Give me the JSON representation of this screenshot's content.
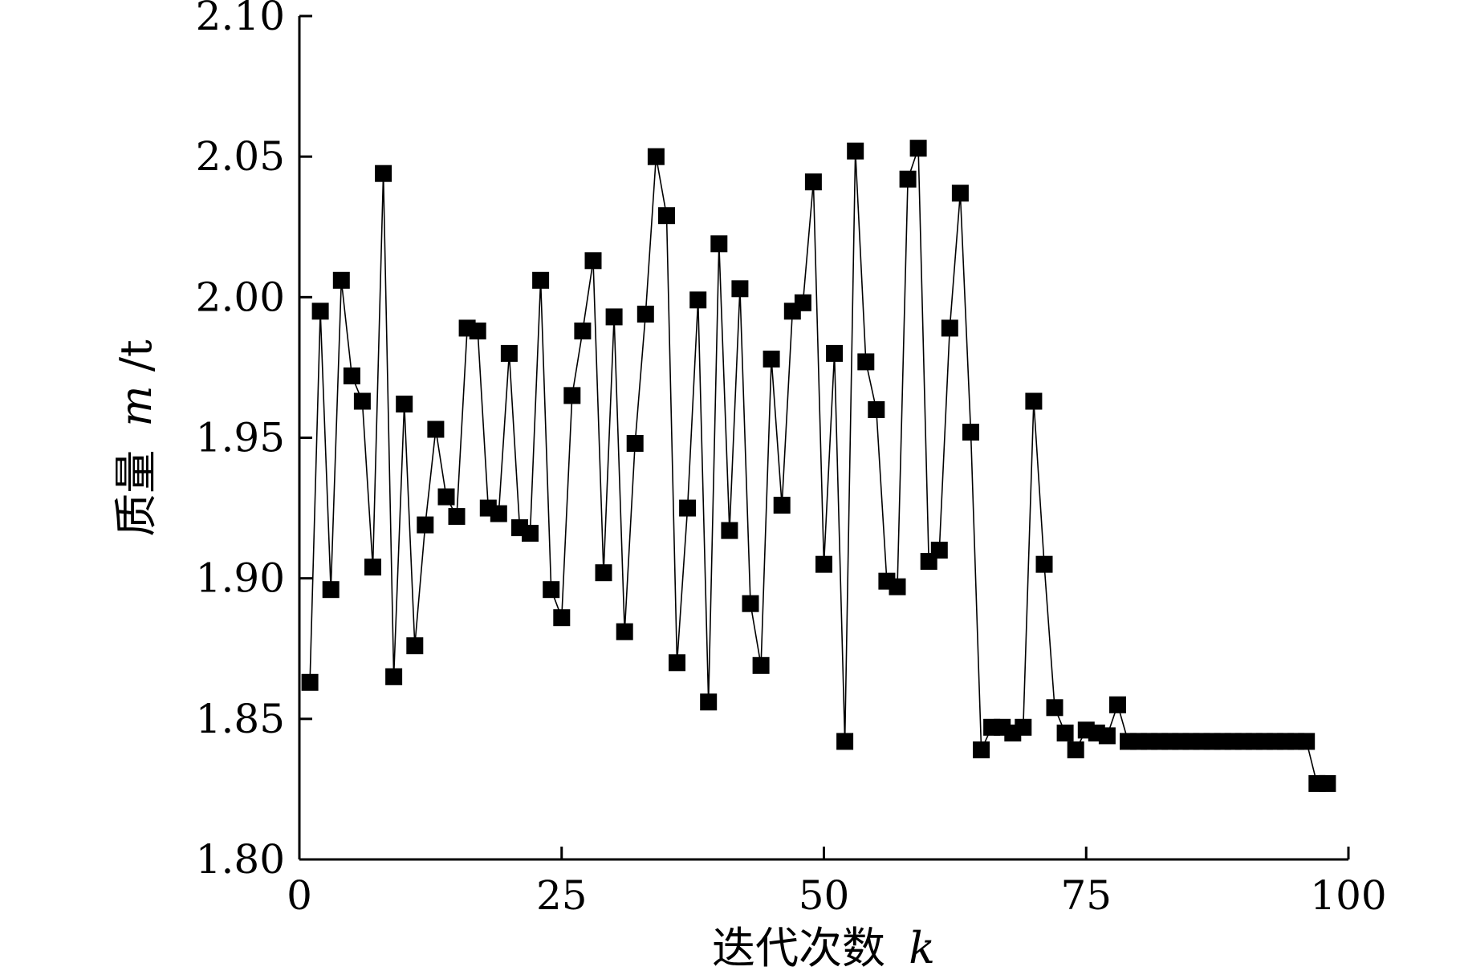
{
  "chart_data": {
    "type": "line",
    "marker": "square",
    "xlabel": "迭代次数",
    "xlabel_var": "k",
    "ylabel": "质量",
    "ylabel_var": "m",
    "ylabel_unit": "/t",
    "xlim": [
      0,
      100
    ],
    "ylim": [
      1.8,
      2.1
    ],
    "xticks": [
      0,
      25,
      50,
      75,
      100
    ],
    "xtick_labels": [
      "0",
      "25",
      "50",
      "75",
      "100"
    ],
    "yticks": [
      1.8,
      1.85,
      1.9,
      1.95,
      2.0,
      2.05,
      2.1
    ],
    "ytick_labels": [
      "1.80",
      "1.85",
      "1.90",
      "1.95",
      "2.00",
      "2.05",
      "2.10"
    ],
    "grid": false,
    "legend": "none",
    "line_color": "#000000",
    "marker_color": "#000000",
    "x": [
      1,
      2,
      3,
      4,
      5,
      6,
      7,
      8,
      9,
      10,
      11,
      12,
      13,
      14,
      15,
      16,
      17,
      18,
      19,
      20,
      21,
      22,
      23,
      24,
      25,
      26,
      27,
      28,
      29,
      30,
      31,
      32,
      33,
      34,
      35,
      36,
      37,
      38,
      39,
      40,
      41,
      42,
      43,
      44,
      45,
      46,
      47,
      48,
      49,
      50,
      51,
      52,
      53,
      54,
      55,
      56,
      57,
      58,
      59,
      60,
      61,
      62,
      63,
      64,
      65,
      66,
      67,
      68,
      69,
      70,
      71,
      72,
      73,
      74,
      75,
      76,
      77,
      78,
      79,
      80,
      81,
      82,
      83,
      84,
      85,
      86,
      87,
      88,
      89,
      90,
      91,
      92,
      93,
      94,
      95,
      96,
      97,
      98
    ],
    "y": [
      1.863,
      1.995,
      1.896,
      2.006,
      1.972,
      1.963,
      1.904,
      2.044,
      1.865,
      1.962,
      1.876,
      1.919,
      1.953,
      1.929,
      1.922,
      1.989,
      1.988,
      1.925,
      1.923,
      1.98,
      1.918,
      1.916,
      2.006,
      1.896,
      1.886,
      1.965,
      1.988,
      2.013,
      1.902,
      1.993,
      1.881,
      1.948,
      1.994,
      2.05,
      2.029,
      1.87,
      1.925,
      1.999,
      1.856,
      2.019,
      1.917,
      2.003,
      1.891,
      1.869,
      1.978,
      1.926,
      1.995,
      1.998,
      2.041,
      1.905,
      1.98,
      1.842,
      2.052,
      1.977,
      1.96,
      1.899,
      1.897,
      2.042,
      2.053,
      1.906,
      1.91,
      1.989,
      2.037,
      1.952,
      1.839,
      1.847,
      1.847,
      1.845,
      1.847,
      1.963,
      1.905,
      1.854,
      1.845,
      1.839,
      1.846,
      1.845,
      1.844,
      1.855,
      1.842,
      1.842,
      1.842,
      1.842,
      1.842,
      1.842,
      1.842,
      1.842,
      1.842,
      1.842,
      1.842,
      1.842,
      1.842,
      1.842,
      1.842,
      1.842,
      1.842,
      1.842,
      1.827,
      1.827
    ]
  }
}
